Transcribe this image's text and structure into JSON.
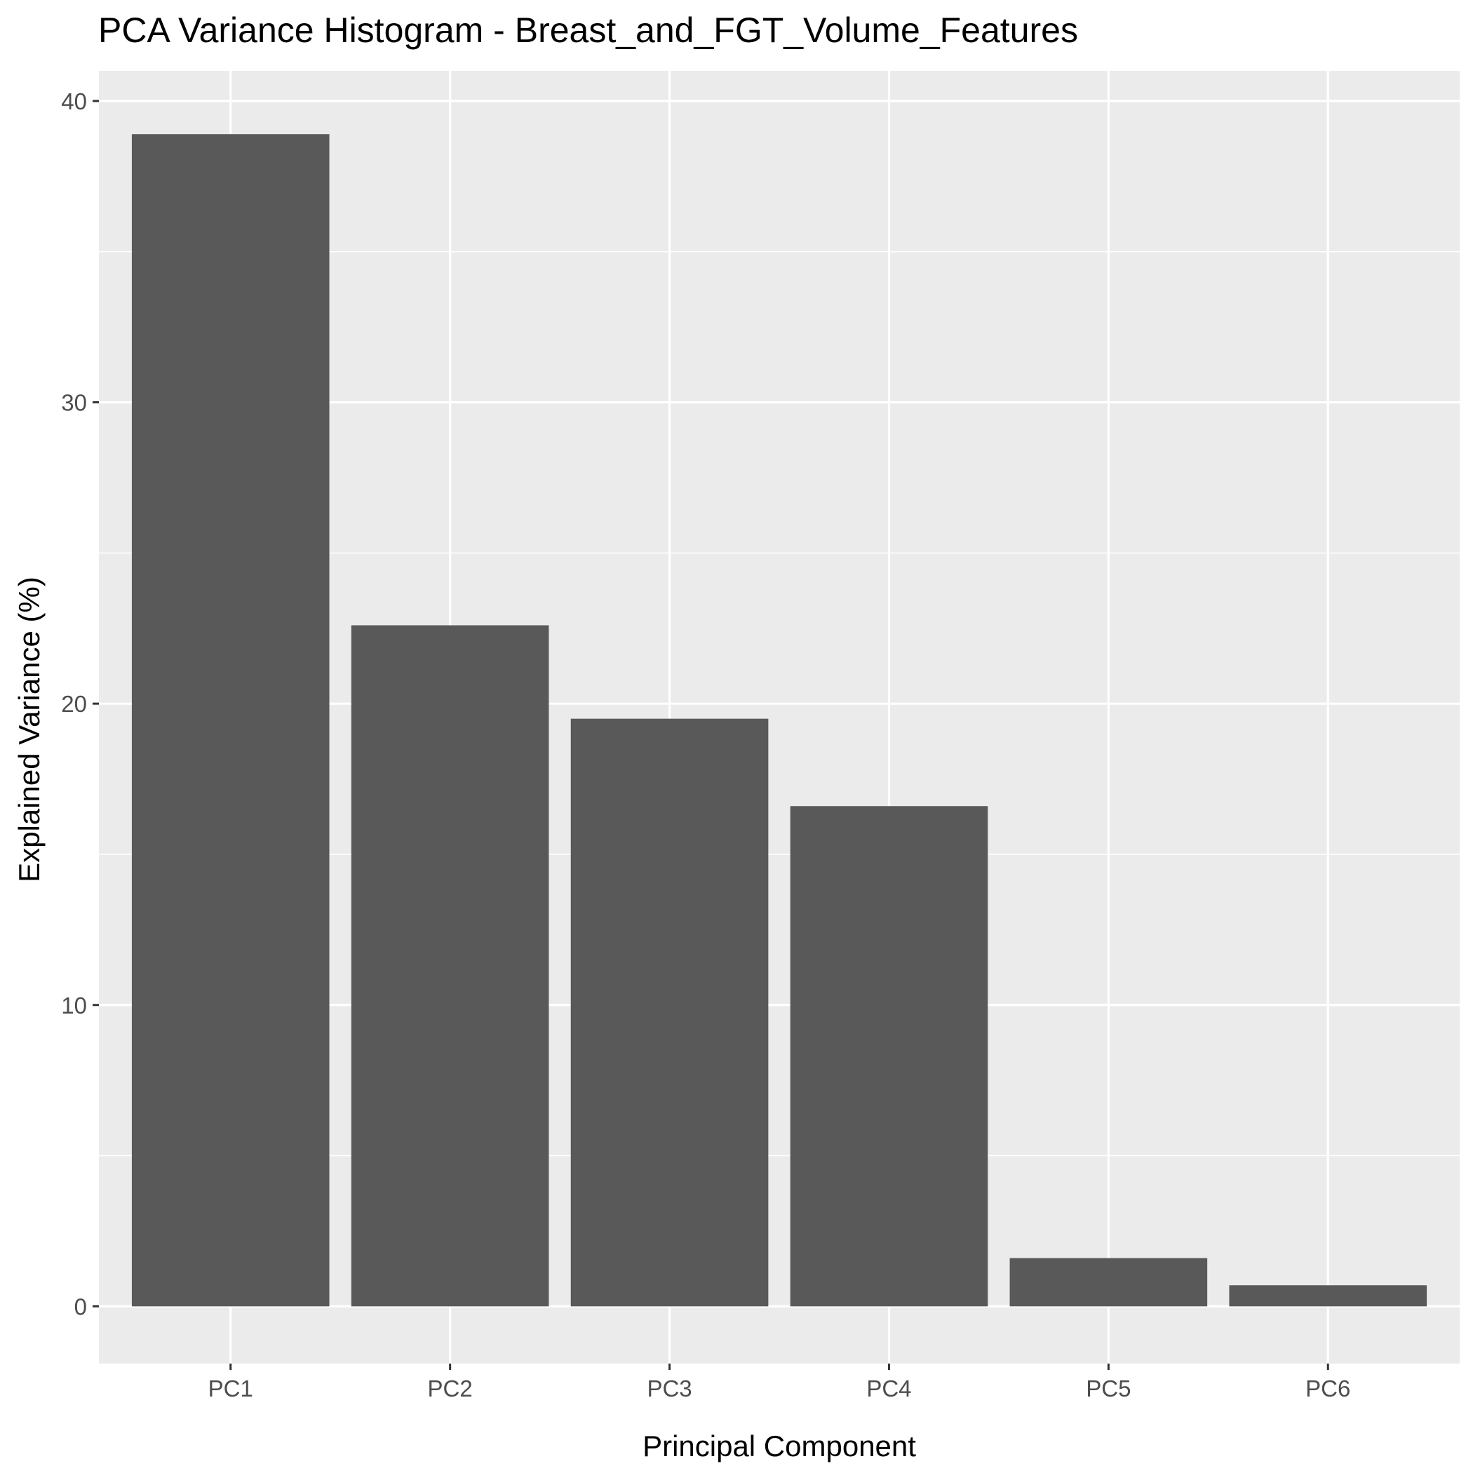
{
  "chart_data": {
    "type": "bar",
    "title": "PCA Variance Histogram - Breast_and_FGT_Volume_Features",
    "xlabel": "Principal Component",
    "ylabel": "Explained Variance (%)",
    "categories": [
      "PC1",
      "PC2",
      "PC3",
      "PC4",
      "PC5",
      "PC6"
    ],
    "values": [
      38.9,
      22.6,
      19.5,
      16.6,
      1.6,
      0.7
    ],
    "yticks": [
      0,
      10,
      20,
      30,
      40
    ],
    "ylim": [
      -1.9,
      41
    ],
    "grid": true,
    "legend": "none",
    "colors": {
      "bar": "#595959",
      "panel": "#ebebeb",
      "grid": "#ffffff",
      "tick": "#333333"
    }
  }
}
